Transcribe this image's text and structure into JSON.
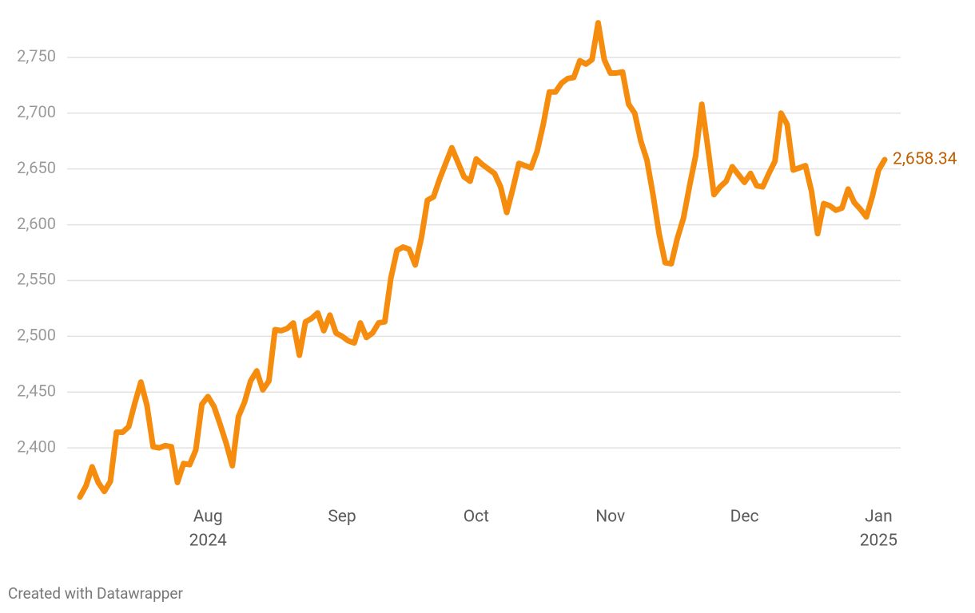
{
  "chart_data": {
    "type": "line",
    "color": "#f68c0e",
    "label_color": "#c05f00",
    "grid": true,
    "ylim": [
      2345,
      2790
    ],
    "yticks": [
      {
        "value": 2400,
        "label": "2,400"
      },
      {
        "value": 2450,
        "label": "2,450"
      },
      {
        "value": 2500,
        "label": "2,500"
      },
      {
        "value": 2550,
        "label": "2,550"
      },
      {
        "value": 2600,
        "label": "2,600"
      },
      {
        "value": 2650,
        "label": "2,650"
      },
      {
        "value": 2700,
        "label": "2,700"
      },
      {
        "value": 2750,
        "label": "2,750"
      }
    ],
    "categories": [
      null,
      null,
      null,
      null,
      null,
      null,
      null,
      null,
      null,
      null,
      null,
      null,
      null,
      null,
      null,
      null,
      null,
      null,
      null,
      null,
      null,
      "Aug",
      null,
      null,
      null,
      null,
      null,
      null,
      null,
      null,
      null,
      null,
      null,
      null,
      null,
      null,
      null,
      null,
      null,
      null,
      null,
      null,
      null,
      "Sep",
      null,
      null,
      null,
      null,
      null,
      null,
      null,
      null,
      null,
      null,
      null,
      null,
      null,
      null,
      null,
      null,
      null,
      null,
      null,
      null,
      null,
      "Oct",
      null,
      null,
      null,
      null,
      null,
      null,
      null,
      null,
      null,
      null,
      null,
      null,
      null,
      null,
      null,
      null,
      null,
      null,
      null,
      null,
      null,
      "Nov",
      null,
      null,
      null,
      null,
      null,
      null,
      null,
      null,
      null,
      null,
      null,
      null,
      null,
      null,
      null,
      null,
      null,
      null,
      null,
      null,
      null,
      "Dec",
      null,
      null,
      null,
      null,
      null,
      null,
      null,
      null,
      null,
      null,
      null,
      null,
      null,
      null,
      null,
      null,
      null,
      null,
      null,
      null,
      null,
      "Jan",
      null
    ],
    "category_years": [
      null,
      null,
      null,
      null,
      null,
      null,
      null,
      null,
      null,
      null,
      null,
      null,
      null,
      null,
      null,
      null,
      null,
      null,
      null,
      null,
      null,
      "2024",
      null,
      null,
      null,
      null,
      null,
      null,
      null,
      null,
      null,
      null,
      null,
      null,
      null,
      null,
      null,
      null,
      null,
      null,
      null,
      null,
      null,
      null,
      null,
      null,
      null,
      null,
      null,
      null,
      null,
      null,
      null,
      null,
      null,
      null,
      null,
      null,
      null,
      null,
      null,
      null,
      null,
      null,
      null,
      null,
      null,
      null,
      null,
      null,
      null,
      null,
      null,
      null,
      null,
      null,
      null,
      null,
      null,
      null,
      null,
      null,
      null,
      null,
      null,
      null,
      null,
      null,
      null,
      null,
      null,
      null,
      null,
      null,
      null,
      null,
      null,
      null,
      null,
      null,
      null,
      null,
      null,
      null,
      null,
      null,
      null,
      null,
      null,
      null,
      null,
      null,
      null,
      null,
      null,
      null,
      null,
      null,
      null,
      null,
      null,
      null,
      null,
      null,
      null,
      null,
      null,
      null,
      null,
      null,
      null,
      "2025",
      null
    ],
    "values": [
      2356,
      2366,
      2383,
      2369,
      2361,
      2370,
      2414,
      2414,
      2419,
      2440,
      2459,
      2438,
      2401,
      2400,
      2402,
      2401,
      2369,
      2386,
      2385,
      2398,
      2439,
      2446,
      2437,
      2421,
      2404,
      2384,
      2428,
      2441,
      2460,
      2469,
      2452,
      2460,
      2506,
      2505,
      2507,
      2512,
      2483,
      2513,
      2516,
      2521,
      2505,
      2519,
      2503,
      2500,
      2496,
      2494,
      2512,
      2499,
      2503,
      2512,
      2513,
      2552,
      2577,
      2580,
      2578,
      2564,
      2588,
      2622,
      2625,
      2641,
      2655,
      2669,
      2656,
      2643,
      2639,
      2659,
      2654,
      2650,
      2646,
      2634,
      2611,
      2632,
      2655,
      2653,
      2651,
      2666,
      2690,
      2719,
      2719,
      2727,
      2731,
      2732,
      2747,
      2744,
      2748,
      2781,
      2748,
      2736,
      2736,
      2737,
      2708,
      2700,
      2675,
      2658,
      2627,
      2592,
      2566,
      2565,
      2588,
      2606,
      2635,
      2662,
      2708,
      2669,
      2627,
      2634,
      2639,
      2652,
      2645,
      2638,
      2646,
      2635,
      2634,
      2646,
      2657,
      2700,
      2690,
      2649,
      2651,
      2653,
      2630,
      2592,
      2619,
      2617,
      2613,
      2615,
      2632,
      2620,
      2614,
      2607,
      2626,
      2649,
      2658.34
    ],
    "value_labels": [
      null,
      null,
      null,
      null,
      null,
      null,
      null,
      null,
      null,
      null,
      null,
      null,
      null,
      null,
      null,
      null,
      null,
      null,
      null,
      null,
      null,
      null,
      null,
      null,
      null,
      null,
      null,
      null,
      null,
      null,
      null,
      null,
      null,
      null,
      null,
      null,
      null,
      null,
      null,
      null,
      null,
      null,
      null,
      null,
      null,
      null,
      null,
      null,
      null,
      null,
      null,
      null,
      null,
      null,
      null,
      null,
      null,
      null,
      null,
      null,
      null,
      null,
      null,
      null,
      null,
      null,
      null,
      null,
      null,
      null,
      null,
      null,
      null,
      null,
      null,
      null,
      null,
      null,
      null,
      null,
      null,
      null,
      null,
      null,
      null,
      null,
      null,
      null,
      null,
      null,
      null,
      null,
      null,
      null,
      null,
      null,
      null,
      null,
      null,
      null,
      null,
      null,
      null,
      null,
      null,
      null,
      null,
      null,
      null,
      null,
      null,
      null,
      null,
      null,
      null,
      null,
      null,
      null,
      null,
      null,
      null,
      null,
      null,
      null,
      null,
      null,
      null,
      null,
      null,
      null,
      null,
      null,
      "2,658.34"
    ],
    "credit": "Created with Datawrapper"
  }
}
